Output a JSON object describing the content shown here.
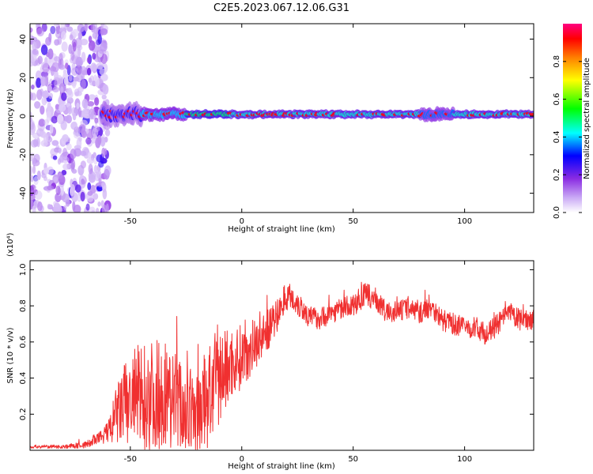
{
  "title": "C2E5.2023.067.12.06.G31",
  "chart_data": [
    {
      "type": "heatmap",
      "xlabel": "Height of straight line (km)",
      "ylabel": "Frequency (Hz)",
      "xlim": [
        -95,
        131
      ],
      "ylim": [
        -50,
        48
      ],
      "xticks": [
        "-50",
        "0",
        "50",
        "100"
      ],
      "yticks": [
        "-40",
        "-20",
        "0",
        "20",
        "40"
      ],
      "colorbar": {
        "label": "Normalized spectral amplitude",
        "range": [
          0,
          1
        ],
        "ticks": [
          "0.0",
          "0.2",
          "0.4",
          "0.6",
          "0.8"
        ],
        "colormap": [
          "#ffffff",
          "#c9a8f5",
          "#8a2be2",
          "#0000ff",
          "#00ffff",
          "#00ff00",
          "#ffff00",
          "#ff8000",
          "#ff0000",
          "#ff0080"
        ]
      },
      "noise_region_x": [
        -95,
        -60
      ],
      "signal_band_freq_hz": 1,
      "signal_segments": [
        {
          "x": [
            -63,
            -45
          ],
          "width_hz": 9,
          "level": 0.35
        },
        {
          "x": [
            -45,
            -25
          ],
          "width_hz": 5,
          "level": 0.5
        },
        {
          "x": [
            -25,
            -5
          ],
          "width_hz": 3,
          "level": 0.6
        },
        {
          "x": [
            -5,
            80
          ],
          "width_hz": 3,
          "level": 0.55
        },
        {
          "x": [
            80,
            95
          ],
          "width_hz": 5,
          "level": 0.45
        },
        {
          "x": [
            95,
            131
          ],
          "width_hz": 3,
          "level": 0.55
        }
      ]
    },
    {
      "type": "line",
      "xlabel": "Height of straight line (km)",
      "ylabel": "SNR (10 * v/v)",
      "yscale_note": "(x10⁴)",
      "xlim": [
        -95,
        131
      ],
      "ylim": [
        0,
        1.05
      ],
      "xticks": [
        "-50",
        "0",
        "50",
        "100"
      ],
      "yticks": [
        "0.2",
        "0.4",
        "0.6",
        "0.8",
        "1.0"
      ],
      "color": "#f03030",
      "series": [
        {
          "x": [
            -95,
            -80,
            -70,
            -65,
            -60,
            -55,
            -50,
            -45,
            -40,
            -35,
            -30,
            -25,
            -20,
            -15,
            -10,
            -5,
            0,
            5,
            10,
            15,
            20,
            25,
            30,
            35,
            40,
            45,
            50,
            55,
            60,
            65,
            70,
            75,
            80,
            85,
            90,
            95,
            100,
            105,
            110,
            115,
            120,
            125,
            131
          ],
          "values": [
            0.02,
            0.02,
            0.03,
            0.06,
            0.1,
            0.22,
            0.28,
            0.3,
            0.3,
            0.32,
            0.28,
            0.22,
            0.2,
            0.3,
            0.4,
            0.48,
            0.52,
            0.58,
            0.64,
            0.72,
            0.86,
            0.82,
            0.74,
            0.73,
            0.76,
            0.79,
            0.8,
            0.86,
            0.84,
            0.76,
            0.77,
            0.79,
            0.76,
            0.8,
            0.72,
            0.7,
            0.68,
            0.68,
            0.64,
            0.7,
            0.76,
            0.72,
            0.73
          ],
          "spread": [
            0.01,
            0.01,
            0.02,
            0.03,
            0.06,
            0.2,
            0.28,
            0.3,
            0.32,
            0.3,
            0.28,
            0.25,
            0.22,
            0.3,
            0.28,
            0.2,
            0.18,
            0.15,
            0.12,
            0.1,
            0.08,
            0.08,
            0.06,
            0.06,
            0.06,
            0.06,
            0.06,
            0.07,
            0.06,
            0.06,
            0.06,
            0.06,
            0.06,
            0.06,
            0.06,
            0.06,
            0.06,
            0.06,
            0.06,
            0.06,
            0.06,
            0.06,
            0.06
          ]
        }
      ]
    }
  ]
}
